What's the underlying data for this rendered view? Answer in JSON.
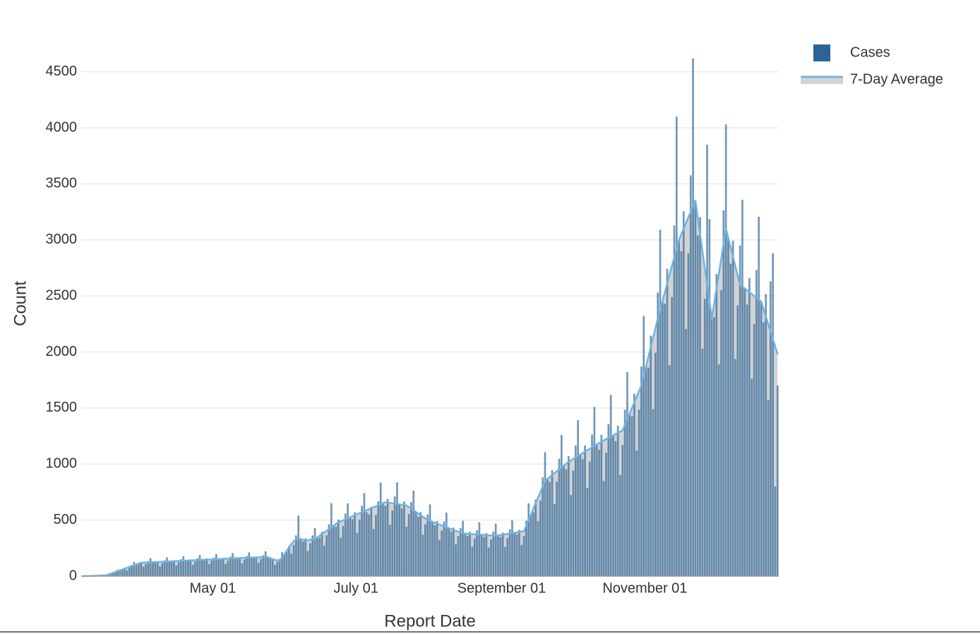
{
  "chart_data": {
    "type": "bar",
    "xlabel": "Report Date",
    "ylabel": "Count",
    "categories": [
      "March 06",
      "March 07",
      "March 08",
      "March 09",
      "March 10",
      "March 11",
      "March 12",
      "March 13",
      "March 14",
      "March 15",
      "March 16",
      "March 17",
      "March 18",
      "March 19",
      "March 20",
      "March 21",
      "March 22",
      "March 23",
      "March 24",
      "March 25",
      "March 26",
      "March 27",
      "March 28",
      "March 29",
      "March 30",
      "March 31",
      "April 01",
      "April 02",
      "April 03",
      "April 04",
      "April 05",
      "April 06",
      "April 07",
      "April 08",
      "April 09",
      "April 10",
      "April 11",
      "April 12",
      "April 13",
      "April 14",
      "April 15",
      "April 16",
      "April 17",
      "April 18",
      "April 19",
      "April 20",
      "April 21",
      "April 22",
      "April 23",
      "April 24",
      "April 25",
      "April 26",
      "April 27",
      "April 28",
      "April 29",
      "April 30",
      "May 01",
      "May 02",
      "May 03",
      "May 04",
      "May 05",
      "May 06",
      "May 07",
      "May 08",
      "May 09",
      "May 10",
      "May 11",
      "May 12",
      "May 13",
      "May 14",
      "May 15",
      "May 16",
      "May 17",
      "May 18",
      "May 19",
      "May 20",
      "May 21",
      "May 22",
      "May 23",
      "May 24",
      "May 25",
      "May 26",
      "May 27",
      "May 28",
      "May 29",
      "May 30",
      "May 31",
      "June 01",
      "June 02",
      "June 03",
      "June 04",
      "June 05",
      "June 06",
      "June 07",
      "June 08",
      "June 09",
      "June 10",
      "June 11",
      "June 12",
      "June 13",
      "June 14",
      "June 15",
      "June 16",
      "June 17",
      "June 18",
      "June 19",
      "June 20",
      "June 21",
      "June 22",
      "June 23",
      "June 24",
      "June 25",
      "June 26",
      "June 27",
      "June 28",
      "June 29",
      "June 30",
      "July 01",
      "July 02",
      "July 03",
      "July 04",
      "July 05",
      "July 06",
      "July 07",
      "July 08",
      "July 09",
      "July 10",
      "July 11",
      "July 12",
      "July 13",
      "July 14",
      "July 15",
      "July 16",
      "July 17",
      "July 18",
      "July 19",
      "July 20",
      "July 21",
      "July 22",
      "July 23",
      "July 24",
      "July 25",
      "July 26",
      "July 27",
      "July 28",
      "July 29",
      "July 30",
      "July 31",
      "August 01",
      "August 02",
      "August 03",
      "August 04",
      "August 05",
      "August 06",
      "August 07",
      "August 08",
      "August 09",
      "August 10",
      "August 11",
      "August 12",
      "August 13",
      "August 14",
      "August 15",
      "August 16",
      "August 17",
      "August 18",
      "August 19",
      "August 20",
      "August 21",
      "August 22",
      "August 23",
      "August 24",
      "August 25",
      "August 26",
      "August 27",
      "August 28",
      "August 29",
      "August 30",
      "August 31",
      "September 01",
      "September 02",
      "September 03",
      "September 04",
      "September 05",
      "September 06",
      "September 07",
      "September 08",
      "September 09",
      "September 10",
      "September 11",
      "September 12",
      "September 13",
      "September 14",
      "September 15",
      "September 16",
      "September 17",
      "September 18",
      "September 19",
      "September 20",
      "September 21",
      "September 22",
      "September 23",
      "September 24",
      "September 25",
      "September 26",
      "September 27",
      "September 28",
      "September 29",
      "September 30",
      "October 01",
      "October 02",
      "October 03",
      "October 04",
      "October 05",
      "October 06",
      "October 07",
      "October 08",
      "October 09",
      "October 10",
      "October 11",
      "October 12",
      "October 13",
      "October 14",
      "October 15",
      "October 16",
      "October 17",
      "October 18",
      "October 19",
      "October 20",
      "October 21",
      "October 22",
      "October 23",
      "October 24",
      "October 25",
      "October 26",
      "October 27",
      "October 28",
      "October 29",
      "October 30",
      "October 31",
      "November 01",
      "November 02",
      "November 03",
      "November 04",
      "November 05",
      "November 06",
      "November 07",
      "November 08",
      "November 09",
      "November 10",
      "November 11",
      "November 12",
      "November 13",
      "November 14",
      "November 15",
      "November 16",
      "November 17",
      "November 18",
      "November 19",
      "November 20",
      "November 21",
      "November 22",
      "November 23",
      "November 24",
      "November 25",
      "November 26",
      "November 27",
      "November 28",
      "November 29",
      "November 30",
      "December 01",
      "December 02",
      "December 03",
      "December 04",
      "December 05",
      "December 06",
      "December 07",
      "December 08",
      "December 09",
      "December 10",
      "December 11",
      "December 12",
      "December 13",
      "December 14",
      "December 15",
      "December 16",
      "December 17",
      "December 18",
      "December 19",
      "December 20",
      "December 21",
      "December 22",
      "December 23",
      "December 24",
      "December 25",
      "December 26",
      "December 27"
    ],
    "series": [
      {
        "name": "Cases",
        "type": "bar",
        "color": "#2c6496",
        "values": [
          0,
          0,
          1,
          1,
          2,
          1,
          3,
          5,
          6,
          6,
          6,
          15,
          15,
          26,
          40,
          57,
          52,
          56,
          70,
          52,
          74,
          99,
          126,
          105,
          106,
          126,
          84,
          109,
          134,
          160,
          124,
          119,
          132,
          89,
          115,
          141,
          168,
          131,
          126,
          140,
          95,
          122,
          150,
          178,
          139,
          134,
          149,
          101,
          130,
          159,
          189,
          147,
          142,
          158,
          107,
          138,
          165,
          196,
          152,
          145,
          162,
          109,
          140,
          173,
          205,
          159,
          152,
          169,
          113,
          147,
          179,
          212,
          165,
          158,
          175,
          118,
          151,
          186,
          221,
          172,
          152,
          158,
          102,
          126,
          154,
          215,
          195,
          214,
          268,
          200,
          279,
          363,
          540,
          330,
          309,
          336,
          224,
          293,
          363,
          429,
          345,
          342,
          394,
          273,
          365,
          462,
          650,
          450,
          442,
          504,
          342,
          448,
          558,
          650,
          525,
          507,
          570,
          386,
          505,
          627,
          741,
          570,
          550,
          618,
          421,
          545,
          667,
          835,
          651,
          627,
          689,
          457,
          585,
          711,
          836,
          640,
          604,
          665,
          441,
          554,
          661,
          763,
          572,
          530,
          570,
          370,
          463,
          550,
          640,
          484,
          452,
          491,
          322,
          407,
          488,
          567,
          428,
          399,
          433,
          283,
          356,
          427,
          494,
          379,
          358,
          395,
          262,
          336,
          408,
          481,
          369,
          349,
          384,
          255,
          327,
          397,
          468,
          363,
          348,
          389,
          261,
          339,
          418,
          498,
          387,
          371,
          413,
          278,
          360,
          495,
          650,
          550,
          570,
          683,
          490,
          675,
          880,
          1105,
          867,
          840,
          946,
          643,
          842,
          1047,
          1260,
          986,
          953,
          1071,
          723,
          941,
          1165,
          1392,
          1084,
          1042,
          1166,
          786,
          1022,
          1264,
          1509,
          1174,
          1128,
          1260,
          848,
          1100,
          1356,
          1617,
          1256,
          1204,
          1342,
          902,
          1170,
          1485,
          1820,
          1450,
          1425,
          1628,
          1120,
          1485,
          1870,
          2322,
          1871,
          1859,
          2145,
          1490,
          1993,
          2530,
          3091,
          2456,
          2431,
          2742,
          1882,
          2490,
          3129,
          4100,
          3000,
          2898,
          3255,
          2205,
          2880,
          3575,
          4620,
          3350,
          3040,
          3203,
          2030,
          2475,
          3850,
          3185,
          2300,
          2311,
          2695,
          1890,
          2550,
          3263,
          4030,
          3017,
          2786,
          2993,
          1937,
          2415,
          2950,
          3358,
          2567,
          2423,
          2660,
          1762,
          2250,
          2731,
          3207,
          2450,
          2264,
          2516,
          1574,
          2630,
          2880,
          800,
          1700
        ]
      },
      {
        "name": "7-Day Average",
        "type": "line",
        "color": "#6cb4e4",
        "fill": "#d3d3d3",
        "values": [
          0,
          0,
          1,
          1,
          2,
          2,
          3,
          4,
          5,
          6,
          6,
          14,
          21,
          29,
          36,
          44,
          52,
          59,
          67,
          74,
          82,
          90,
          97,
          105,
          112,
          120,
          120,
          121,
          122,
          123,
          124,
          125,
          126,
          127,
          128,
          129,
          130,
          131,
          132,
          133,
          134,
          135,
          136,
          137,
          138,
          139,
          140,
          141,
          142,
          143,
          144,
          145,
          146,
          147,
          148,
          149,
          150,
          151,
          152,
          153,
          154,
          155,
          156,
          157,
          158,
          159,
          160,
          161,
          162,
          163,
          163,
          164,
          165,
          166,
          167,
          168,
          168,
          169,
          170,
          170,
          160,
          150,
          145,
          140,
          140,
          165,
          195,
          225,
          255,
          285,
          310,
          330,
          335,
          330,
          325,
          320,
          320,
          325,
          330,
          330,
          345,
          360,
          375,
          390,
          405,
          420,
          435,
          450,
          465,
          480,
          489,
          498,
          507,
          516,
          525,
          534,
          543,
          552,
          561,
          570,
          579,
          588,
          597,
          606,
          615,
          624,
          633,
          642,
          651,
          660,
          656,
          653,
          650,
          646,
          643,
          640,
          636,
          633,
          630,
          616,
          601,
          587,
          572,
          558,
          543,
          529,
          514,
          500,
          492,
          484,
          476,
          468,
          460,
          452,
          444,
          436,
          428,
          420,
          412,
          404,
          396,
          388,
          380,
          379,
          377,
          376,
          374,
          373,
          371,
          370,
          369,
          367,
          366,
          364,
          363,
          361,
          360,
          363,
          367,
          370,
          373,
          377,
          380,
          383,
          387,
          390,
          393,
          397,
          400,
          450,
          500,
          550,
          600,
          650,
          700,
          750,
          800,
          850,
          867,
          884,
          901,
          918,
          935,
          952,
          969,
          986,
          1003,
          1020,
          1033,
          1046,
          1059,
          1071,
          1084,
          1097,
          1110,
          1123,
          1136,
          1149,
          1161,
          1174,
          1187,
          1200,
          1211,
          1222,
          1233,
          1244,
          1256,
          1267,
          1278,
          1289,
          1300,
          1350,
          1400,
          1450,
          1500,
          1550,
          1600,
          1650,
          1700,
          1786,
          1871,
          1957,
          2043,
          2129,
          2214,
          2300,
          2378,
          2456,
          2533,
          2611,
          2689,
          2767,
          2844,
          2922,
          3000,
          3050,
          3100,
          3150,
          3200,
          3250,
          3300,
          3350,
          3200,
          3050,
          2900,
          2750,
          2600,
          2450,
          2300,
          2433,
          2567,
          2700,
          2833,
          2967,
          3100,
          3017,
          2933,
          2850,
          2767,
          2683,
          2600,
          2583,
          2567,
          2550,
          2533,
          2517,
          2500,
          2483,
          2467,
          2450,
          2383,
          2316,
          2249,
          2181,
          2114,
          2047,
          1980
        ]
      }
    ],
    "xticks": [
      "May 01",
      "July 01",
      "September 01",
      "November 01"
    ],
    "ylim": [
      0,
      4750
    ],
    "yticks": [
      0,
      500,
      1000,
      1500,
      2000,
      2500,
      3000,
      3500,
      4000,
      4500
    ],
    "grid": true,
    "legend": "top-right"
  }
}
